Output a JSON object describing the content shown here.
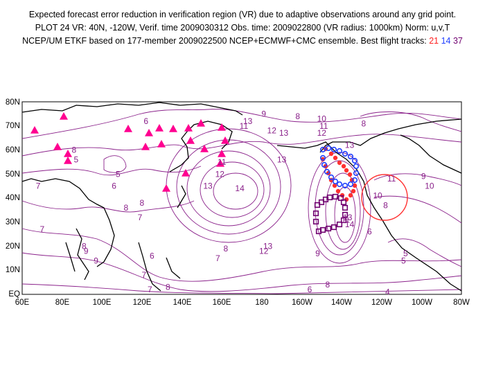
{
  "header": {
    "line1": "Expected forecast error reduction in verification region (VR) due to adaptive observations around any grid point.",
    "line2": "PLOT 24 VR: 40N, -120W, Verif. time 2009030312 Obs. time: 2009022800 (VR radius: 1000km) Norm: u,v,T",
    "line3_prefix": "NCEP/UM ETKF based on 177-member 2009022500 NCEP+ECMWF+CMC ensemble. Best flight tracks:",
    "track_ids": [
      "21",
      "14",
      "37"
    ]
  },
  "colors": {
    "contour": "#8a208a",
    "coast": "#000000",
    "track_21": "#ff3030",
    "track_14": "#2040ff",
    "track_37": "#700070",
    "dropsonde_triangle": "#ff0090",
    "verification_circle": "#ff3030"
  },
  "axes": {
    "lat_labels": [
      "80N",
      "70N",
      "60N",
      "50N",
      "40N",
      "30N",
      "20N",
      "10N",
      "EQ"
    ],
    "lon_labels": [
      "60E",
      "80E",
      "100E",
      "120E",
      "140E",
      "160E",
      "180",
      "160W",
      "140W",
      "120W",
      "100W",
      "80W"
    ]
  },
  "contour_labels": [
    {
      "text": "6",
      "lon": 122,
      "lat": 72
    },
    {
      "text": "8",
      "lon": 86,
      "lat": 60
    },
    {
      "text": "5",
      "lon": 87,
      "lat": 56
    },
    {
      "text": "5",
      "lon": 108,
      "lat": 50
    },
    {
      "text": "6",
      "lon": 106,
      "lat": 45
    },
    {
      "text": "7",
      "lon": 68,
      "lat": 45
    },
    {
      "text": "8",
      "lon": 112,
      "lat": 36
    },
    {
      "text": "7",
      "lon": 119,
      "lat": 32
    },
    {
      "text": "8",
      "lon": 120,
      "lat": 38
    },
    {
      "text": "9",
      "lon": 181,
      "lat": 75
    },
    {
      "text": "8",
      "lon": 198,
      "lat": 74
    },
    {
      "text": "10",
      "lon": 210,
      "lat": 73
    },
    {
      "text": "11",
      "lon": 171,
      "lat": 70
    },
    {
      "text": "13",
      "lon": 173,
      "lat": 72
    },
    {
      "text": "12",
      "lon": 185,
      "lat": 68
    },
    {
      "text": "13",
      "lon": 191,
      "lat": 67
    },
    {
      "text": "11",
      "lon": 211,
      "lat": 70
    },
    {
      "text": "12",
      "lon": 210,
      "lat": 67
    },
    {
      "text": "13",
      "lon": 190,
      "lat": 56
    },
    {
      "text": "13",
      "lon": 224,
      "lat": 62
    },
    {
      "text": "11",
      "lon": 160,
      "lat": 55
    },
    {
      "text": "12",
      "lon": 159,
      "lat": 50
    },
    {
      "text": "13",
      "lon": 153,
      "lat": 45
    },
    {
      "text": "14",
      "lon": 169,
      "lat": 44
    },
    {
      "text": "11",
      "lon": 245,
      "lat": 48
    },
    {
      "text": "9",
      "lon": 261,
      "lat": 49
    },
    {
      "text": "10",
      "lon": 264,
      "lat": 45
    },
    {
      "text": "8",
      "lon": 231,
      "lat": 71
    },
    {
      "text": "10",
      "lon": 238,
      "lat": 41
    },
    {
      "text": "8",
      "lon": 242,
      "lat": 37
    },
    {
      "text": "6",
      "lon": 234,
      "lat": 26
    },
    {
      "text": "9",
      "lon": 208,
      "lat": 17
    },
    {
      "text": "11",
      "lon": 222,
      "lat": 31
    },
    {
      "text": "13",
      "lon": 223,
      "lat": 32
    },
    {
      "text": "14",
      "lon": 224,
      "lat": 29
    },
    {
      "text": "13",
      "lon": 183,
      "lat": 20
    },
    {
      "text": "12",
      "lon": 181,
      "lat": 18
    },
    {
      "text": "8",
      "lon": 162,
      "lat": 19
    },
    {
      "text": "7",
      "lon": 158,
      "lat": 15
    },
    {
      "text": "7",
      "lon": 70,
      "lat": 27
    },
    {
      "text": "8",
      "lon": 91,
      "lat": 20
    },
    {
      "text": "9",
      "lon": 92,
      "lat": 18
    },
    {
      "text": "9",
      "lon": 97,
      "lat": 14
    },
    {
      "text": "6",
      "lon": 125,
      "lat": 16
    },
    {
      "text": "7",
      "lon": 121,
      "lat": 8
    },
    {
      "text": "8",
      "lon": 133,
      "lat": 3
    },
    {
      "text": "5",
      "lon": 252,
      "lat": 17
    },
    {
      "text": "5",
      "lon": 251,
      "lat": 14
    },
    {
      "text": "4",
      "lon": 243,
      "lat": 1
    },
    {
      "text": "6",
      "lon": 204,
      "lat": 2
    },
    {
      "text": "8",
      "lon": 213,
      "lat": 4
    },
    {
      "text": "7",
      "lon": 124,
      "lat": 2
    }
  ]
}
